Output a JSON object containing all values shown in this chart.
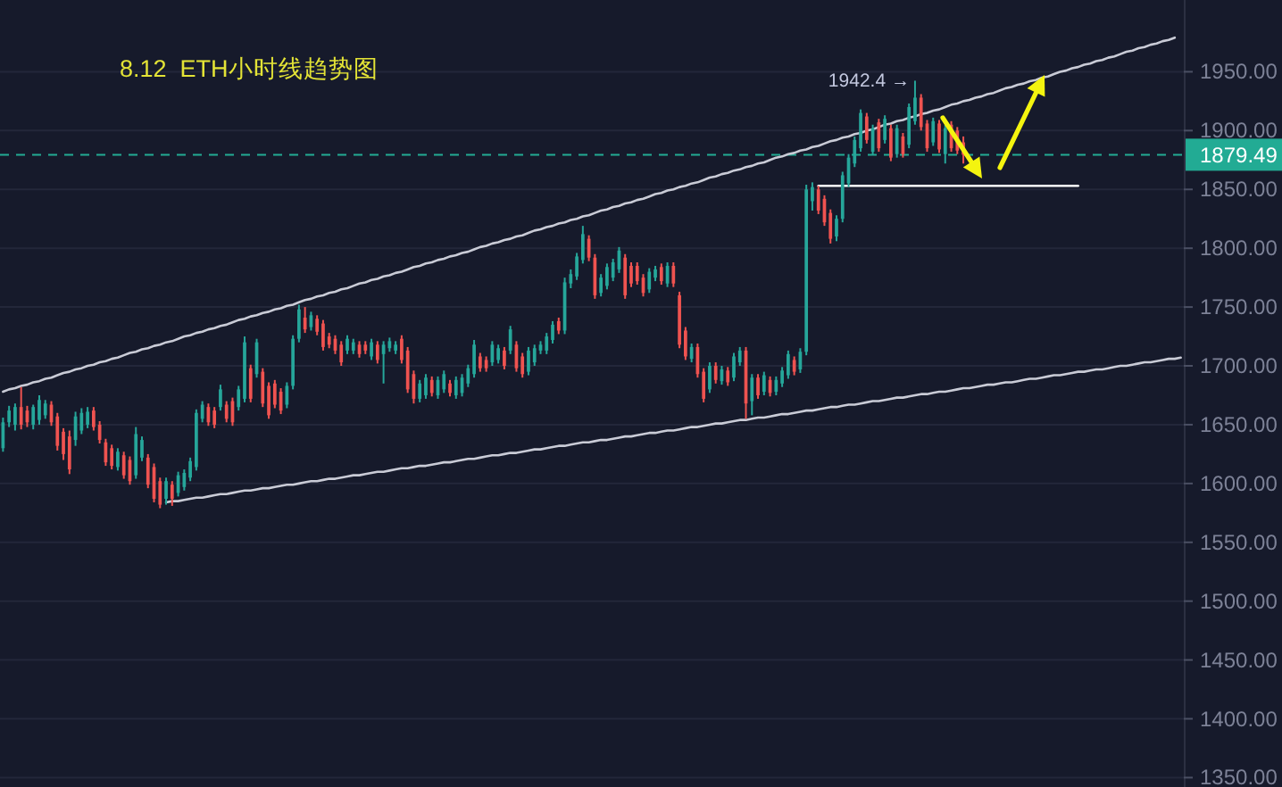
{
  "chart_data": {
    "type": "candlestick",
    "title": "8.12  ETH小时线趋势图",
    "categories": [
      null,
      null,
      null,
      null,
      null,
      null,
      null,
      null,
      null,
      null,
      null,
      null,
      null,
      null,
      null,
      null,
      null,
      null,
      null,
      null,
      null,
      null,
      null,
      null,
      null,
      null,
      null,
      null,
      null,
      null,
      null,
      null,
      null,
      null,
      null,
      null,
      null,
      null,
      null,
      null,
      null,
      null,
      null,
      null,
      null,
      null,
      null,
      null,
      null,
      null,
      null,
      null,
      null,
      null,
      null,
      null,
      null,
      null,
      null,
      null,
      null,
      null,
      null,
      null,
      null,
      null,
      null,
      null,
      null,
      null,
      null,
      null,
      null,
      null,
      null,
      null,
      null,
      null,
      null,
      null,
      null,
      null,
      null,
      null,
      null,
      null,
      null,
      null,
      null,
      null,
      null,
      null,
      null,
      null,
      null,
      null,
      null,
      null,
      null,
      null,
      null,
      null,
      null,
      null,
      null,
      null,
      null,
      null,
      null,
      null,
      null,
      null,
      null,
      null,
      null,
      null,
      null,
      null,
      null,
      null,
      null,
      null,
      null,
      null,
      null,
      null,
      null,
      null,
      null,
      null,
      null,
      null,
      null,
      null,
      null,
      null,
      null,
      null,
      null,
      null,
      null,
      null,
      null,
      null,
      null,
      null,
      null,
      null,
      null,
      null,
      null,
      null,
      null,
      null,
      null,
      null,
      null,
      null,
      null,
      null,
      null,
      null,
      null,
      null,
      null,
      null,
      null,
      null,
      null,
      null,
      null,
      null,
      null,
      null,
      null,
      null,
      null,
      null,
      null,
      null,
      null,
      null,
      null,
      null,
      null,
      null,
      null,
      null,
      null,
      null,
      null,
      null,
      null,
      null,
      null,
      null
    ],
    "ohlc": [
      [
        1630,
        1656,
        1627,
        1652
      ],
      [
        1652,
        1666,
        1648,
        1662
      ],
      [
        1650,
        1668,
        1645,
        1665
      ],
      [
        1665,
        1682,
        1646,
        1650
      ],
      [
        1662,
        1666,
        1648,
        1652
      ],
      [
        1650,
        1667,
        1646,
        1665
      ],
      [
        1654,
        1675,
        1650,
        1671
      ],
      [
        1658,
        1671,
        1655,
        1668
      ],
      [
        1667,
        1670,
        1649,
        1652
      ],
      [
        1657,
        1660,
        1628,
        1632
      ],
      [
        1644,
        1647,
        1620,
        1625
      ],
      [
        1640,
        1645,
        1608,
        1612
      ],
      [
        1637,
        1661,
        1632,
        1657
      ],
      [
        1645,
        1664,
        1642,
        1660
      ],
      [
        1650,
        1665,
        1647,
        1661
      ],
      [
        1662,
        1665,
        1645,
        1648
      ],
      [
        1650,
        1653,
        1634,
        1637
      ],
      [
        1635,
        1638,
        1615,
        1618
      ],
      [
        1630,
        1633,
        1612,
        1615
      ],
      [
        1614,
        1630,
        1611,
        1627
      ],
      [
        1624,
        1627,
        1604,
        1607
      ],
      [
        1620,
        1623,
        1599,
        1602
      ],
      [
        1607,
        1648,
        1604,
        1642
      ],
      [
        1622,
        1640,
        1619,
        1637
      ],
      [
        1622,
        1625,
        1596,
        1599
      ],
      [
        1614,
        1617,
        1584,
        1587
      ],
      [
        1602,
        1605,
        1579,
        1582
      ],
      [
        1587,
        1605,
        1582,
        1602
      ],
      [
        1599,
        1602,
        1581,
        1587
      ],
      [
        1592,
        1610,
        1589,
        1607
      ],
      [
        1597,
        1612,
        1594,
        1609
      ],
      [
        1605,
        1622,
        1602,
        1619
      ],
      [
        1614,
        1663,
        1611,
        1660
      ],
      [
        1655,
        1670,
        1652,
        1667
      ],
      [
        1665,
        1668,
        1649,
        1652
      ],
      [
        1662,
        1665,
        1647,
        1650
      ],
      [
        1665,
        1684,
        1662,
        1680
      ],
      [
        1667,
        1670,
        1652,
        1655
      ],
      [
        1670,
        1673,
        1649,
        1652
      ],
      [
        1665,
        1683,
        1662,
        1680
      ],
      [
        1672,
        1725,
        1669,
        1720
      ],
      [
        1698,
        1701,
        1669,
        1672
      ],
      [
        1693,
        1723,
        1690,
        1720
      ],
      [
        1695,
        1698,
        1665,
        1668
      ],
      [
        1683,
        1686,
        1655,
        1658
      ],
      [
        1685,
        1688,
        1664,
        1667
      ],
      [
        1678,
        1681,
        1659,
        1662
      ],
      [
        1667,
        1686,
        1664,
        1683
      ],
      [
        1683,
        1726,
        1680,
        1723
      ],
      [
        1723,
        1752,
        1720,
        1748
      ],
      [
        1741,
        1750,
        1728,
        1731
      ],
      [
        1733,
        1746,
        1730,
        1743
      ],
      [
        1740,
        1743,
        1726,
        1729
      ],
      [
        1736,
        1739,
        1713,
        1716
      ],
      [
        1725,
        1728,
        1715,
        1718
      ],
      [
        1723,
        1726,
        1710,
        1713
      ],
      [
        1718,
        1721,
        1700,
        1703
      ],
      [
        1713,
        1726,
        1710,
        1723
      ],
      [
        1713,
        1723,
        1710,
        1720
      ],
      [
        1718,
        1721,
        1707,
        1710
      ],
      [
        1718,
        1721,
        1710,
        1713
      ],
      [
        1708,
        1723,
        1705,
        1720
      ],
      [
        1718,
        1721,
        1702,
        1705
      ],
      [
        1710,
        1721,
        1685,
        1718
      ],
      [
        1715,
        1724,
        1712,
        1721
      ],
      [
        1713,
        1721,
        1710,
        1718
      ],
      [
        1723,
        1726,
        1702,
        1705
      ],
      [
        1713,
        1716,
        1677,
        1680
      ],
      [
        1693,
        1696,
        1668,
        1672
      ],
      [
        1672,
        1688,
        1669,
        1685
      ],
      [
        1675,
        1693,
        1672,
        1690
      ],
      [
        1688,
        1691,
        1674,
        1677
      ],
      [
        1675,
        1691,
        1672,
        1688
      ],
      [
        1680,
        1696,
        1677,
        1693
      ],
      [
        1685,
        1688,
        1674,
        1677
      ],
      [
        1675,
        1691,
        1672,
        1688
      ],
      [
        1677,
        1693,
        1674,
        1690
      ],
      [
        1685,
        1701,
        1682,
        1698
      ],
      [
        1693,
        1722,
        1690,
        1718
      ],
      [
        1708,
        1711,
        1695,
        1698
      ],
      [
        1705,
        1708,
        1695,
        1698
      ],
      [
        1703,
        1721,
        1700,
        1718
      ],
      [
        1705,
        1718,
        1702,
        1715
      ],
      [
        1713,
        1716,
        1697,
        1700
      ],
      [
        1713,
        1734,
        1710,
        1731
      ],
      [
        1718,
        1721,
        1695,
        1698
      ],
      [
        1708,
        1711,
        1690,
        1693
      ],
      [
        1695,
        1716,
        1692,
        1713
      ],
      [
        1703,
        1718,
        1700,
        1715
      ],
      [
        1713,
        1721,
        1710,
        1718
      ],
      [
        1713,
        1728,
        1710,
        1725
      ],
      [
        1722,
        1738,
        1719,
        1735
      ],
      [
        1738,
        1741,
        1727,
        1730
      ],
      [
        1730,
        1775,
        1727,
        1771
      ],
      [
        1770,
        1782,
        1766,
        1778
      ],
      [
        1776,
        1796,
        1773,
        1793
      ],
      [
        1790,
        1819,
        1787,
        1812
      ],
      [
        1808,
        1811,
        1789,
        1792
      ],
      [
        1792,
        1795,
        1757,
        1760
      ],
      [
        1762,
        1778,
        1759,
        1775
      ],
      [
        1768,
        1787,
        1765,
        1784
      ],
      [
        1775,
        1791,
        1772,
        1788
      ],
      [
        1782,
        1801,
        1779,
        1798
      ],
      [
        1792,
        1795,
        1757,
        1760
      ],
      [
        1785,
        1788,
        1767,
        1770
      ],
      [
        1785,
        1788,
        1769,
        1772
      ],
      [
        1775,
        1778,
        1759,
        1762
      ],
      [
        1765,
        1783,
        1762,
        1780
      ],
      [
        1775,
        1785,
        1772,
        1782
      ],
      [
        1784,
        1787,
        1769,
        1772
      ],
      [
        1770,
        1788,
        1767,
        1785
      ],
      [
        1785,
        1788,
        1767,
        1770
      ],
      [
        1760,
        1763,
        1715,
        1718
      ],
      [
        1730,
        1733,
        1705,
        1708
      ],
      [
        1706,
        1719,
        1703,
        1716
      ],
      [
        1716,
        1719,
        1690,
        1693
      ],
      [
        1695,
        1698,
        1669,
        1672
      ],
      [
        1680,
        1703,
        1677,
        1700
      ],
      [
        1700,
        1703,
        1685,
        1688
      ],
      [
        1687,
        1700,
        1684,
        1697
      ],
      [
        1696,
        1699,
        1683,
        1686
      ],
      [
        1690,
        1711,
        1687,
        1708
      ],
      [
        1703,
        1716,
        1700,
        1713
      ],
      [
        1713,
        1716,
        1655,
        1668
      ],
      [
        1670,
        1693,
        1658,
        1690
      ],
      [
        1690,
        1693,
        1672,
        1675
      ],
      [
        1678,
        1695,
        1675,
        1692
      ],
      [
        1688,
        1691,
        1674,
        1677
      ],
      [
        1678,
        1691,
        1675,
        1688
      ],
      [
        1685,
        1699,
        1682,
        1696
      ],
      [
        1692,
        1713,
        1689,
        1710
      ],
      [
        1705,
        1708,
        1692,
        1695
      ],
      [
        1697,
        1715,
        1694,
        1712
      ],
      [
        1712,
        1854,
        1709,
        1850
      ],
      [
        1840,
        1856,
        1832,
        1852
      ],
      [
        1850,
        1853,
        1829,
        1832
      ],
      [
        1842,
        1845,
        1819,
        1822
      ],
      [
        1830,
        1833,
        1804,
        1808
      ],
      [
        1810,
        1828,
        1806,
        1825
      ],
      [
        1825,
        1865,
        1822,
        1862
      ],
      [
        1855,
        1880,
        1852,
        1877
      ],
      [
        1872,
        1895,
        1869,
        1892
      ],
      [
        1885,
        1918,
        1882,
        1915
      ],
      [
        1912,
        1915,
        1889,
        1892
      ],
      [
        1882,
        1905,
        1879,
        1902
      ],
      [
        1907,
        1910,
        1882,
        1885
      ],
      [
        1892,
        1913,
        1889,
        1910
      ],
      [
        1902,
        1905,
        1874,
        1877
      ],
      [
        1880,
        1905,
        1877,
        1902
      ],
      [
        1895,
        1898,
        1877,
        1880
      ],
      [
        1888,
        1923,
        1885,
        1920
      ],
      [
        1908,
        1942.4,
        1905,
        1928
      ],
      [
        1928,
        1931,
        1900,
        1903
      ],
      [
        1906,
        1909,
        1882,
        1885
      ],
      [
        1890,
        1911,
        1887,
        1908
      ],
      [
        1906,
        1909,
        1881,
        1884
      ],
      [
        1880,
        1905,
        1872,
        1902
      ],
      [
        1905,
        1908,
        1882,
        1885
      ],
      [
        1900,
        1903,
        1880,
        1883
      ],
      [
        1890,
        1895,
        1872,
        1879.49
      ],
      null,
      null,
      null,
      null,
      null,
      null,
      null,
      null,
      null,
      null,
      null,
      null,
      null,
      null,
      null,
      null,
      null,
      null,
      null,
      null,
      null,
      null,
      null,
      null,
      null,
      null,
      null,
      null,
      null,
      null,
      null,
      null,
      null,
      null,
      null,
      null
    ],
    "colors": [
      "#26a69a",
      "#26a69a",
      "#26a69a",
      "#ef5350",
      "#ef5350",
      "#26a69a",
      "#26a69a",
      "#26a69a",
      "#ef5350",
      "#ef5350",
      "#ef5350",
      "#ef5350",
      "#26a69a",
      "#26a69a",
      "#26a69a",
      "#ef5350",
      "#ef5350",
      "#ef5350",
      "#ef5350",
      "#26a69a",
      "#ef5350",
      "#ef5350",
      "#26a69a",
      "#26a69a",
      "#ef5350",
      "#ef5350",
      "#ef5350",
      "#26a69a",
      "#ef5350",
      "#26a69a",
      "#26a69a",
      "#26a69a",
      "#26a69a",
      "#26a69a",
      "#ef5350",
      "#ef5350",
      "#26a69a",
      "#ef5350",
      "#ef5350",
      "#26a69a",
      "#26a69a",
      "#ef5350",
      "#26a69a",
      "#ef5350",
      "#ef5350",
      "#ef5350",
      "#ef5350",
      "#26a69a",
      "#26a69a",
      "#26a69a",
      "#ef5350",
      "#26a69a",
      "#ef5350",
      "#ef5350",
      "#ef5350",
      "#ef5350",
      "#ef5350",
      "#26a69a",
      "#26a69a",
      "#ef5350",
      "#ef5350",
      "#26a69a",
      "#ef5350",
      "#26a69a",
      "#26a69a",
      "#26a69a",
      "#ef5350",
      "#ef5350",
      "#ef5350",
      "#26a69a",
      "#26a69a",
      "#ef5350",
      "#26a69a",
      "#26a69a",
      "#ef5350",
      "#26a69a",
      "#26a69a",
      "#26a69a",
      "#26a69a",
      "#ef5350",
      "#ef5350",
      "#26a69a",
      "#26a69a",
      "#ef5350",
      "#26a69a",
      "#ef5350",
      "#ef5350",
      "#26a69a",
      "#26a69a",
      "#26a69a",
      "#26a69a",
      "#26a69a",
      "#ef5350",
      "#26a69a",
      "#26a69a",
      "#26a69a",
      "#26a69a",
      "#ef5350",
      "#ef5350",
      "#26a69a",
      "#26a69a",
      "#26a69a",
      "#26a69a",
      "#ef5350",
      "#ef5350",
      "#ef5350",
      "#ef5350",
      "#26a69a",
      "#26a69a",
      "#ef5350",
      "#26a69a",
      "#ef5350",
      "#ef5350",
      "#ef5350",
      "#26a69a",
      "#ef5350",
      "#ef5350",
      "#26a69a",
      "#ef5350",
      "#26a69a",
      "#ef5350",
      "#26a69a",
      "#26a69a",
      "#ef5350",
      "#26a69a",
      "#ef5350",
      "#26a69a",
      "#ef5350",
      "#26a69a",
      "#26a69a",
      "#26a69a",
      "#ef5350",
      "#26a69a",
      "#26a69a",
      "#26a69a",
      "#ef5350",
      "#ef5350",
      "#ef5350",
      "#26a69a",
      "#26a69a",
      "#26a69a",
      "#26a69a",
      "#26a69a",
      "#ef5350",
      "#26a69a",
      "#ef5350",
      "#26a69a",
      "#ef5350",
      "#26a69a",
      "#ef5350",
      "#26a69a",
      "#26a69a",
      "#ef5350",
      "#ef5350",
      "#26a69a",
      "#ef5350",
      "#26a69a",
      "#ef5350",
      "#ef5350",
      "#ef5350",
      null,
      null,
      null,
      null,
      null,
      null,
      null,
      null,
      null,
      null,
      null,
      null,
      null,
      null,
      null,
      null,
      null,
      null,
      null,
      null,
      null,
      null,
      null,
      null,
      null,
      null,
      null,
      null,
      null,
      null,
      null,
      null,
      null,
      null,
      null,
      null
    ],
    "series": [
      {
        "type": "line",
        "color": "#c9cbd6",
        "values": [
          1678,
          1680,
          1681,
          1683,
          1684,
          1686,
          1687,
          1689,
          1690,
          1692,
          1694,
          1695,
          1697,
          1698,
          1700,
          1701,
          1703,
          1704,
          1706,
          1707,
          1709,
          1711,
          1712,
          1714,
          1715,
          1717,
          1718,
          1720,
          1721,
          1723,
          1725,
          1726,
          1728,
          1729,
          1731,
          1732,
          1734,
          1735,
          1737,
          1739,
          1740,
          1742,
          1743,
          1745,
          1746,
          1748,
          1749,
          1751,
          1752,
          1754,
          1756,
          1757,
          1759,
          1760,
          1762,
          1763,
          1765,
          1766,
          1768,
          1770,
          1771,
          1773,
          1774,
          1776,
          1777,
          1779,
          1780,
          1782,
          1784,
          1785,
          1787,
          1788,
          1790,
          1791,
          1793,
          1794,
          1796,
          1797,
          1799,
          1801,
          1802,
          1804,
          1805,
          1807,
          1808,
          1810,
          1811,
          1813,
          1815,
          1816,
          1818,
          1819,
          1821,
          1822,
          1824,
          1825,
          1827,
          1828,
          1830,
          1832,
          1833,
          1835,
          1836,
          1838,
          1839,
          1841,
          1842,
          1844,
          1846,
          1847,
          1849,
          1850,
          1852,
          1853,
          1855,
          1856,
          1858,
          1860,
          1861,
          1863,
          1864,
          1866,
          1867,
          1869,
          1870,
          1872,
          1873,
          1875,
          1877,
          1878,
          1880,
          1881,
          1883,
          1884,
          1886,
          1887,
          1889,
          1891,
          1892,
          1894,
          1895,
          1897,
          1898,
          1900,
          1901,
          1903,
          1905,
          1906,
          1908,
          1909,
          1911,
          1912,
          1914,
          1915,
          1917,
          1918,
          1920,
          1922,
          1923,
          1925,
          1926,
          1928,
          1929,
          1931,
          1932,
          1934,
          1936,
          1937,
          1939,
          1940,
          1942,
          1943,
          1945,
          1946,
          1948,
          1950,
          1951,
          1953,
          1954,
          1956,
          1957,
          1959,
          1960,
          1962,
          1963,
          1965,
          1967,
          1968,
          1970,
          1971,
          1973,
          1974,
          1976,
          1977,
          1979,
          null
        ]
      },
      {
        "type": "line",
        "color": "#c9cbd6",
        "values": [
          null,
          null,
          null,
          null,
          null,
          null,
          null,
          null,
          null,
          null,
          null,
          null,
          null,
          null,
          null,
          null,
          null,
          null,
          null,
          null,
          null,
          null,
          null,
          null,
          null,
          null,
          null,
          1584,
          1585,
          1585,
          1586,
          1587,
          1588,
          1588,
          1589,
          1590,
          1591,
          1591,
          1592,
          1593,
          1594,
          1594,
          1595,
          1596,
          1596,
          1597,
          1598,
          1599,
          1599,
          1600,
          1601,
          1602,
          1602,
          1603,
          1604,
          1604,
          1605,
          1606,
          1607,
          1607,
          1608,
          1609,
          1610,
          1610,
          1611,
          1612,
          1613,
          1613,
          1614,
          1615,
          1615,
          1616,
          1617,
          1618,
          1618,
          1619,
          1620,
          1621,
          1621,
          1622,
          1623,
          1624,
          1624,
          1625,
          1626,
          1626,
          1627,
          1628,
          1629,
          1629,
          1630,
          1631,
          1632,
          1632,
          1633,
          1634,
          1635,
          1635,
          1636,
          1637,
          1637,
          1638,
          1639,
          1640,
          1640,
          1641,
          1642,
          1643,
          1643,
          1644,
          1645,
          1645,
          1646,
          1647,
          1648,
          1648,
          1649,
          1650,
          1651,
          1651,
          1652,
          1653,
          1654,
          1654,
          1655,
          1656,
          1656,
          1657,
          1658,
          1659,
          1659,
          1660,
          1661,
          1662,
          1662,
          1663,
          1664,
          1665,
          1665,
          1666,
          1667,
          1667,
          1668,
          1669,
          1670,
          1670,
          1671,
          1672,
          1673,
          1673,
          1674,
          1675,
          1676,
          1676,
          1677,
          1678,
          1678,
          1679,
          1680,
          1681,
          1681,
          1682,
          1683,
          1684,
          1684,
          1685,
          1686,
          1686,
          1687,
          1688,
          1689,
          1689,
          1690,
          1691,
          1692,
          1692,
          1693,
          1694,
          1695,
          1695,
          1696,
          1697,
          1697,
          1698,
          1699,
          1700,
          1700,
          1701,
          1702,
          1703,
          1703,
          1704,
          1705,
          1706,
          1706,
          1707
        ]
      },
      {
        "type": "line",
        "color": "#ffffff",
        "values": [
          null,
          null,
          null,
          null,
          null,
          null,
          null,
          null,
          null,
          null,
          null,
          null,
          null,
          null,
          null,
          null,
          null,
          null,
          null,
          null,
          null,
          null,
          null,
          null,
          null,
          null,
          null,
          null,
          null,
          null,
          null,
          null,
          null,
          null,
          null,
          null,
          null,
          null,
          null,
          null,
          null,
          null,
          null,
          null,
          null,
          null,
          null,
          null,
          null,
          null,
          null,
          null,
          null,
          null,
          null,
          null,
          null,
          null,
          null,
          null,
          null,
          null,
          null,
          null,
          null,
          null,
          null,
          null,
          null,
          null,
          null,
          null,
          null,
          null,
          null,
          null,
          null,
          null,
          null,
          null,
          null,
          null,
          null,
          null,
          null,
          null,
          null,
          null,
          null,
          null,
          null,
          null,
          null,
          null,
          null,
          null,
          null,
          null,
          null,
          null,
          null,
          null,
          null,
          null,
          null,
          null,
          null,
          null,
          null,
          null,
          null,
          null,
          null,
          null,
          null,
          null,
          null,
          null,
          null,
          null,
          null,
          null,
          null,
          null,
          null,
          null,
          null,
          null,
          null,
          null,
          null,
          null,
          null,
          null,
          null,
          1853,
          1853,
          1853,
          1853,
          1853,
          1853,
          1853,
          1853,
          1853,
          1853,
          1853,
          1853,
          1853,
          1853,
          1853,
          1853,
          1853,
          1853,
          1853,
          1853,
          1853,
          1853,
          1853,
          1853,
          1853,
          1853,
          1853,
          1853,
          1853,
          1853,
          1853,
          1853,
          1853,
          1853,
          1853,
          1853,
          1853,
          1853,
          1853,
          1853,
          1853,
          1853,
          1853,
          1853,
          null,
          null,
          null,
          null,
          null,
          null,
          null,
          null,
          null,
          null,
          null,
          null,
          null,
          null,
          null,
          null,
          null
        ]
      }
    ],
    "ref_lines": [
      {
        "axis": "y",
        "value": 1879.49,
        "label": "1879.49",
        "color": "#22ab94",
        "line_style": "dashed"
      }
    ],
    "annotations": [
      "1942.4 →"
    ],
    "ylim": [
      1342,
      2011
    ],
    "yticks": [
      {
        "value": 1350,
        "label": "1350.00"
      },
      {
        "value": 1400,
        "label": "1400.00"
      },
      {
        "value": 1450,
        "label": "1450.00"
      },
      {
        "value": 1500,
        "label": "1500.00"
      },
      {
        "value": 1550,
        "label": "1550.00"
      },
      {
        "value": 1600,
        "label": "1600.00"
      },
      {
        "value": 1650,
        "label": "1650.00"
      },
      {
        "value": 1700,
        "label": "1700.00"
      },
      {
        "value": 1750,
        "label": "1750.00"
      },
      {
        "value": 1800,
        "label": "1800.00"
      },
      {
        "value": 1850,
        "label": "1850.00"
      },
      {
        "value": 1900,
        "label": "1900.00"
      },
      {
        "value": 1950,
        "label": "1950.00"
      }
    ],
    "grid": "y",
    "tick_labels": "y"
  }
}
